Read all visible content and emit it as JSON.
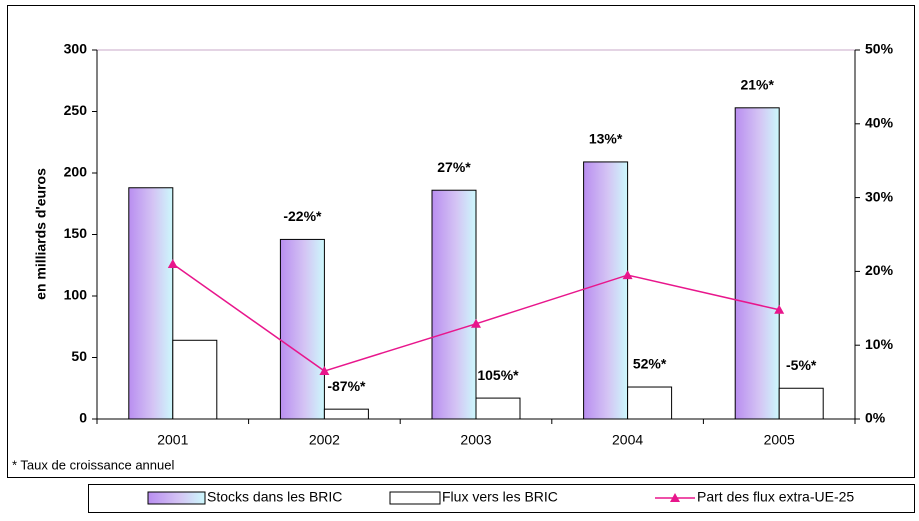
{
  "chart_data": {
    "type": "bar",
    "y_label": "en milliards d'euros",
    "footnote": "* Taux de croissance annuel",
    "categories": [
      "2001",
      "2002",
      "2003",
      "2004",
      "2005"
    ],
    "series": [
      {
        "name": "Stocks dans les BRIC",
        "color": "#c39ef0",
        "values": [
          188,
          146,
          186,
          209,
          253
        ],
        "growth_labels": [
          null,
          "-22%*",
          "27%*",
          "13%*",
          "21%*"
        ]
      },
      {
        "name": "Flux vers les BRIC",
        "color": "#ffffff",
        "values": [
          64,
          8,
          17,
          26,
          25
        ],
        "growth_labels": [
          null,
          "-87%*",
          "105%*",
          "52%*",
          "-5%*"
        ]
      },
      {
        "name": "Part des flux extra-UE-25",
        "color": "#e8168c",
        "type": "line",
        "axis": "y2",
        "values": [
          21,
          6.5,
          12.9,
          19.5,
          14.8
        ]
      }
    ],
    "ylim": [
      0,
      300
    ],
    "yticks": [
      0,
      50,
      100,
      150,
      200,
      250,
      300
    ],
    "y2lim": [
      0,
      50
    ],
    "y2ticks": [
      {
        "value": 0,
        "label": "0%"
      },
      {
        "value": 10,
        "label": "10%"
      },
      {
        "value": 20,
        "label": "20%"
      },
      {
        "value": 30,
        "label": "30%"
      },
      {
        "value": 40,
        "label": "40%"
      },
      {
        "value": 50,
        "label": "50%"
      }
    ],
    "legend": "bottom"
  }
}
